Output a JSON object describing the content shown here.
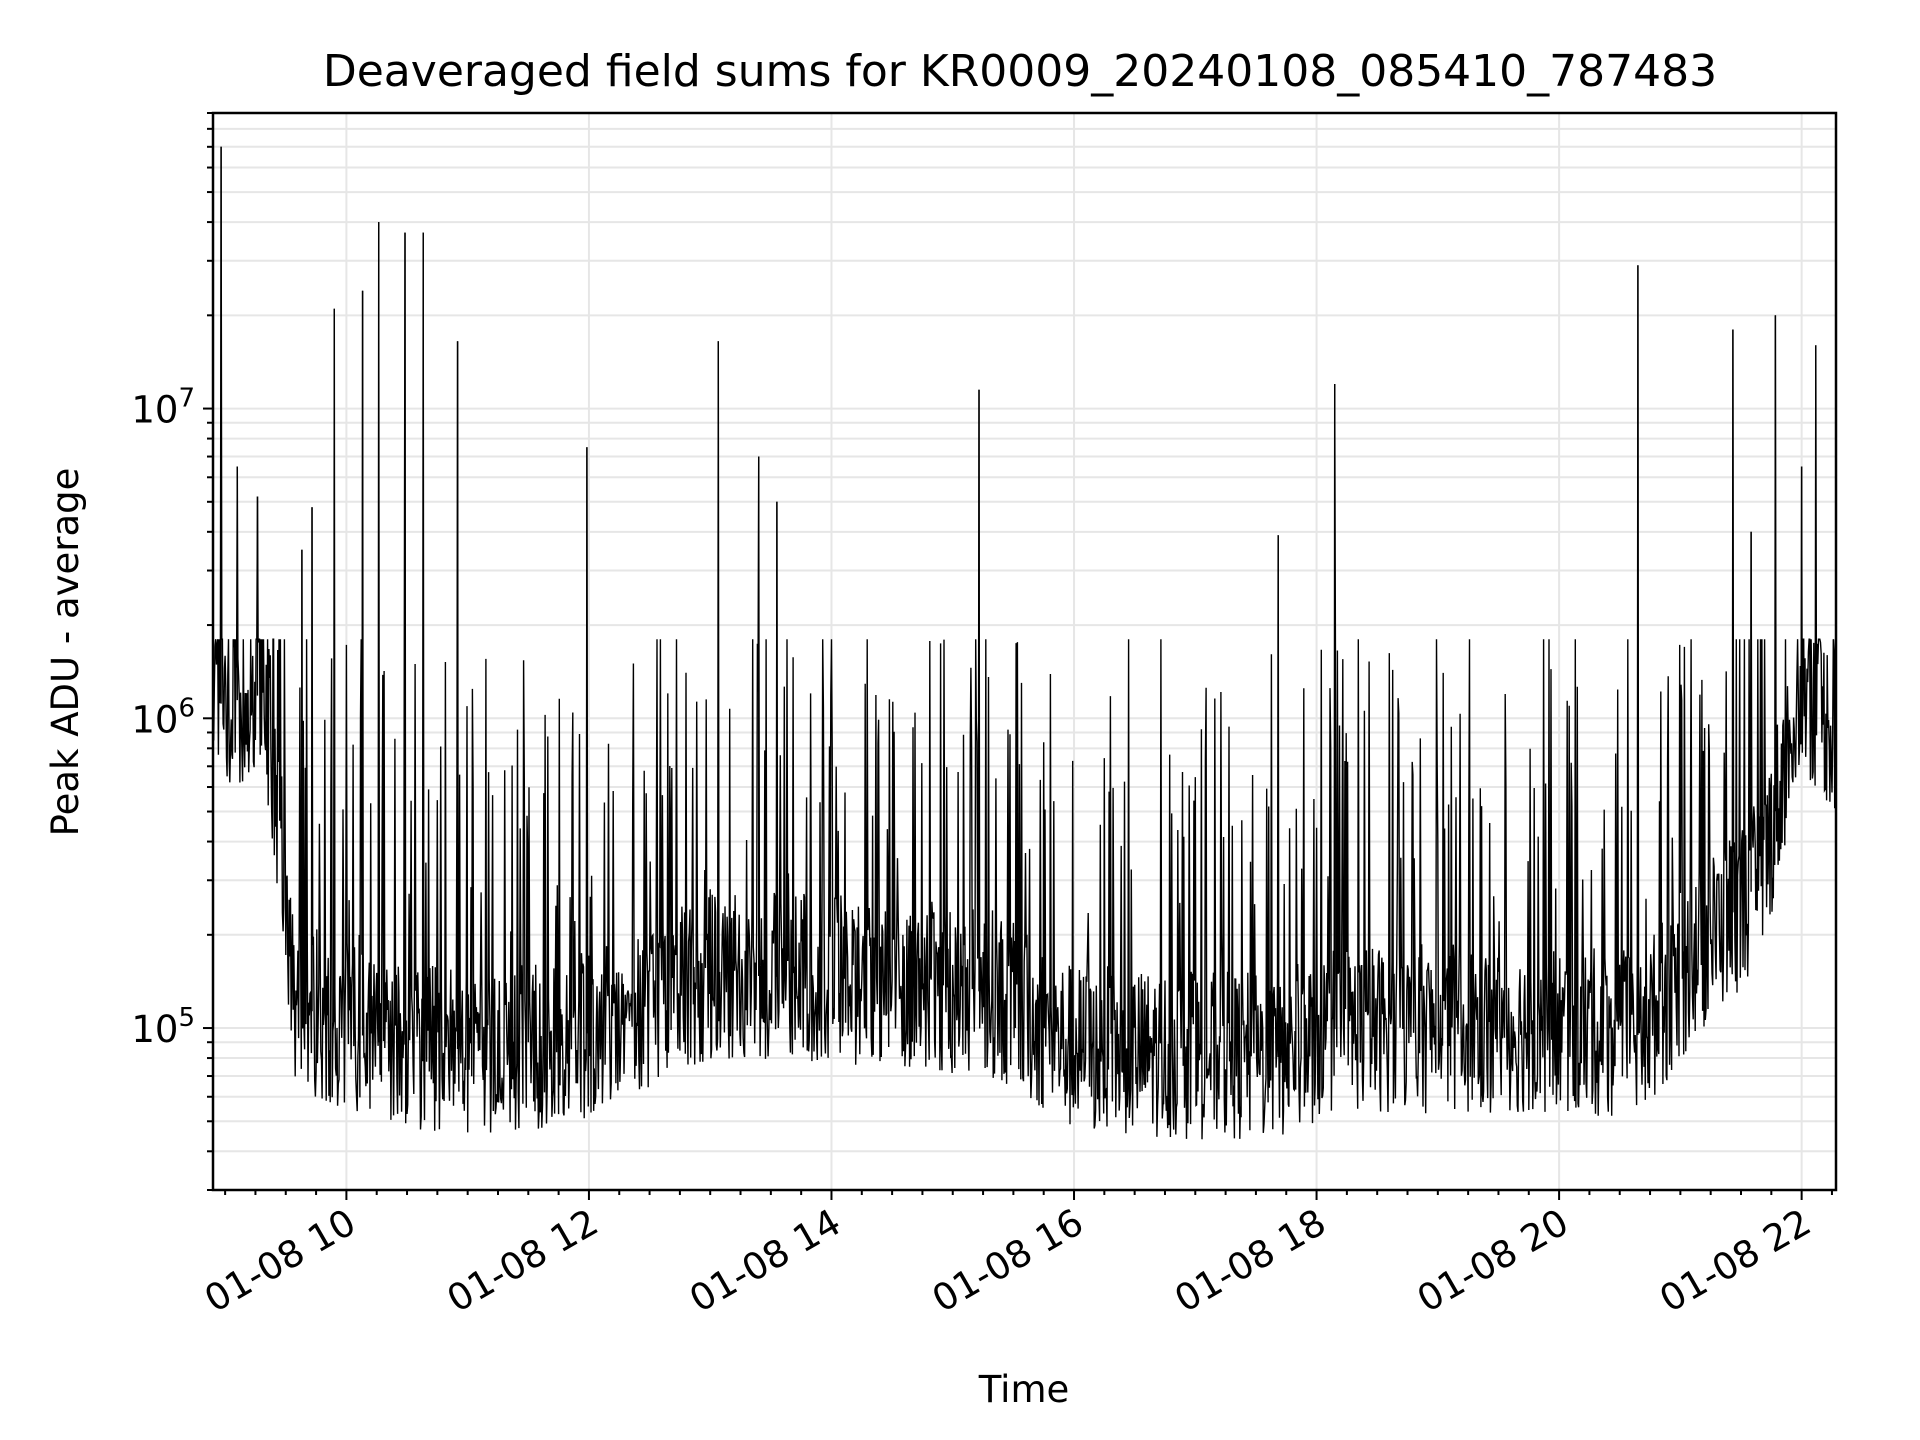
{
  "chart_data": {
    "type": "line",
    "title": "Deaveraged field sums for KR0009_20240108_085410_787483",
    "xlabel": "Time",
    "ylabel": "Peak ADU - average",
    "x_axis": {
      "kind": "time",
      "range": [
        "2024-01-08 08:54",
        "2024-01-08 22:17"
      ],
      "ticks": [
        "2024-01-08 10:00",
        "2024-01-08 12:00",
        "2024-01-08 14:00",
        "2024-01-08 16:00",
        "2024-01-08 18:00",
        "2024-01-08 20:00",
        "2024-01-08 22:00"
      ],
      "tick_labels": [
        "01-08 10",
        "01-08 12",
        "01-08 14",
        "01-08 16",
        "01-08 18",
        "01-08 20",
        "01-08 22"
      ]
    },
    "y_axis": {
      "scale": "log",
      "range": [
        30000,
        90000000
      ],
      "ticks": [
        100000,
        1000000,
        10000000
      ],
      "tick_labels": [
        {
          "base": "10",
          "exp": "5"
        },
        {
          "base": "10",
          "exp": "6"
        },
        {
          "base": "10",
          "exp": "7"
        }
      ]
    },
    "grid": true,
    "series_color": "#000000",
    "baseline": {
      "x": [
        "2024-01-08 08:54",
        "2024-01-08 09:20",
        "2024-01-08 09:35",
        "2024-01-08 10:15",
        "2024-01-08 11:00",
        "2024-01-08 11:50",
        "2024-01-08 13:00",
        "2024-01-08 14:30",
        "2024-01-08 15:20",
        "2024-01-08 16:00",
        "2024-01-08 17:40",
        "2024-01-08 18:10",
        "2024-01-08 19:30",
        "2024-01-08 20:40",
        "2024-01-08 21:10",
        "2024-01-08 21:40",
        "2024-01-08 22:00",
        "2024-01-08 22:17"
      ],
      "y": [
        1100000,
        1200000,
        120000,
        90000,
        85000,
        90000,
        150000,
        140000,
        130000,
        85000,
        80000,
        100000,
        100000,
        95000,
        180000,
        300000,
        1300000,
        900000
      ]
    },
    "spikes": {
      "x": [
        "2024-01-08 08:58",
        "2024-01-08 09:06",
        "2024-01-08 09:16",
        "2024-01-08 09:38",
        "2024-01-08 09:43",
        "2024-01-08 09:54",
        "2024-01-08 10:08",
        "2024-01-08 10:16",
        "2024-01-08 10:29",
        "2024-01-08 10:38",
        "2024-01-08 10:55",
        "2024-01-08 11:59",
        "2024-01-08 13:04",
        "2024-01-08 13:24",
        "2024-01-08 13:33",
        "2024-01-08 15:13",
        "2024-01-08 17:41",
        "2024-01-08 18:09",
        "2024-01-08 20:39",
        "2024-01-08 21:26",
        "2024-01-08 21:35",
        "2024-01-08 21:47",
        "2024-01-08 22:00",
        "2024-01-08 22:07"
      ],
      "y": [
        70000000,
        6500000,
        5200000,
        3500000,
        4800000,
        21000000,
        24000000,
        40000000,
        37000000,
        37000000,
        16500000,
        7500000,
        16500000,
        7000000,
        5000000,
        11500000,
        3900000,
        12000000,
        29000000,
        18000000,
        4000000,
        20000000,
        6500000,
        16000000
      ]
    },
    "range_min": 42000,
    "range_max": 1800000
  }
}
